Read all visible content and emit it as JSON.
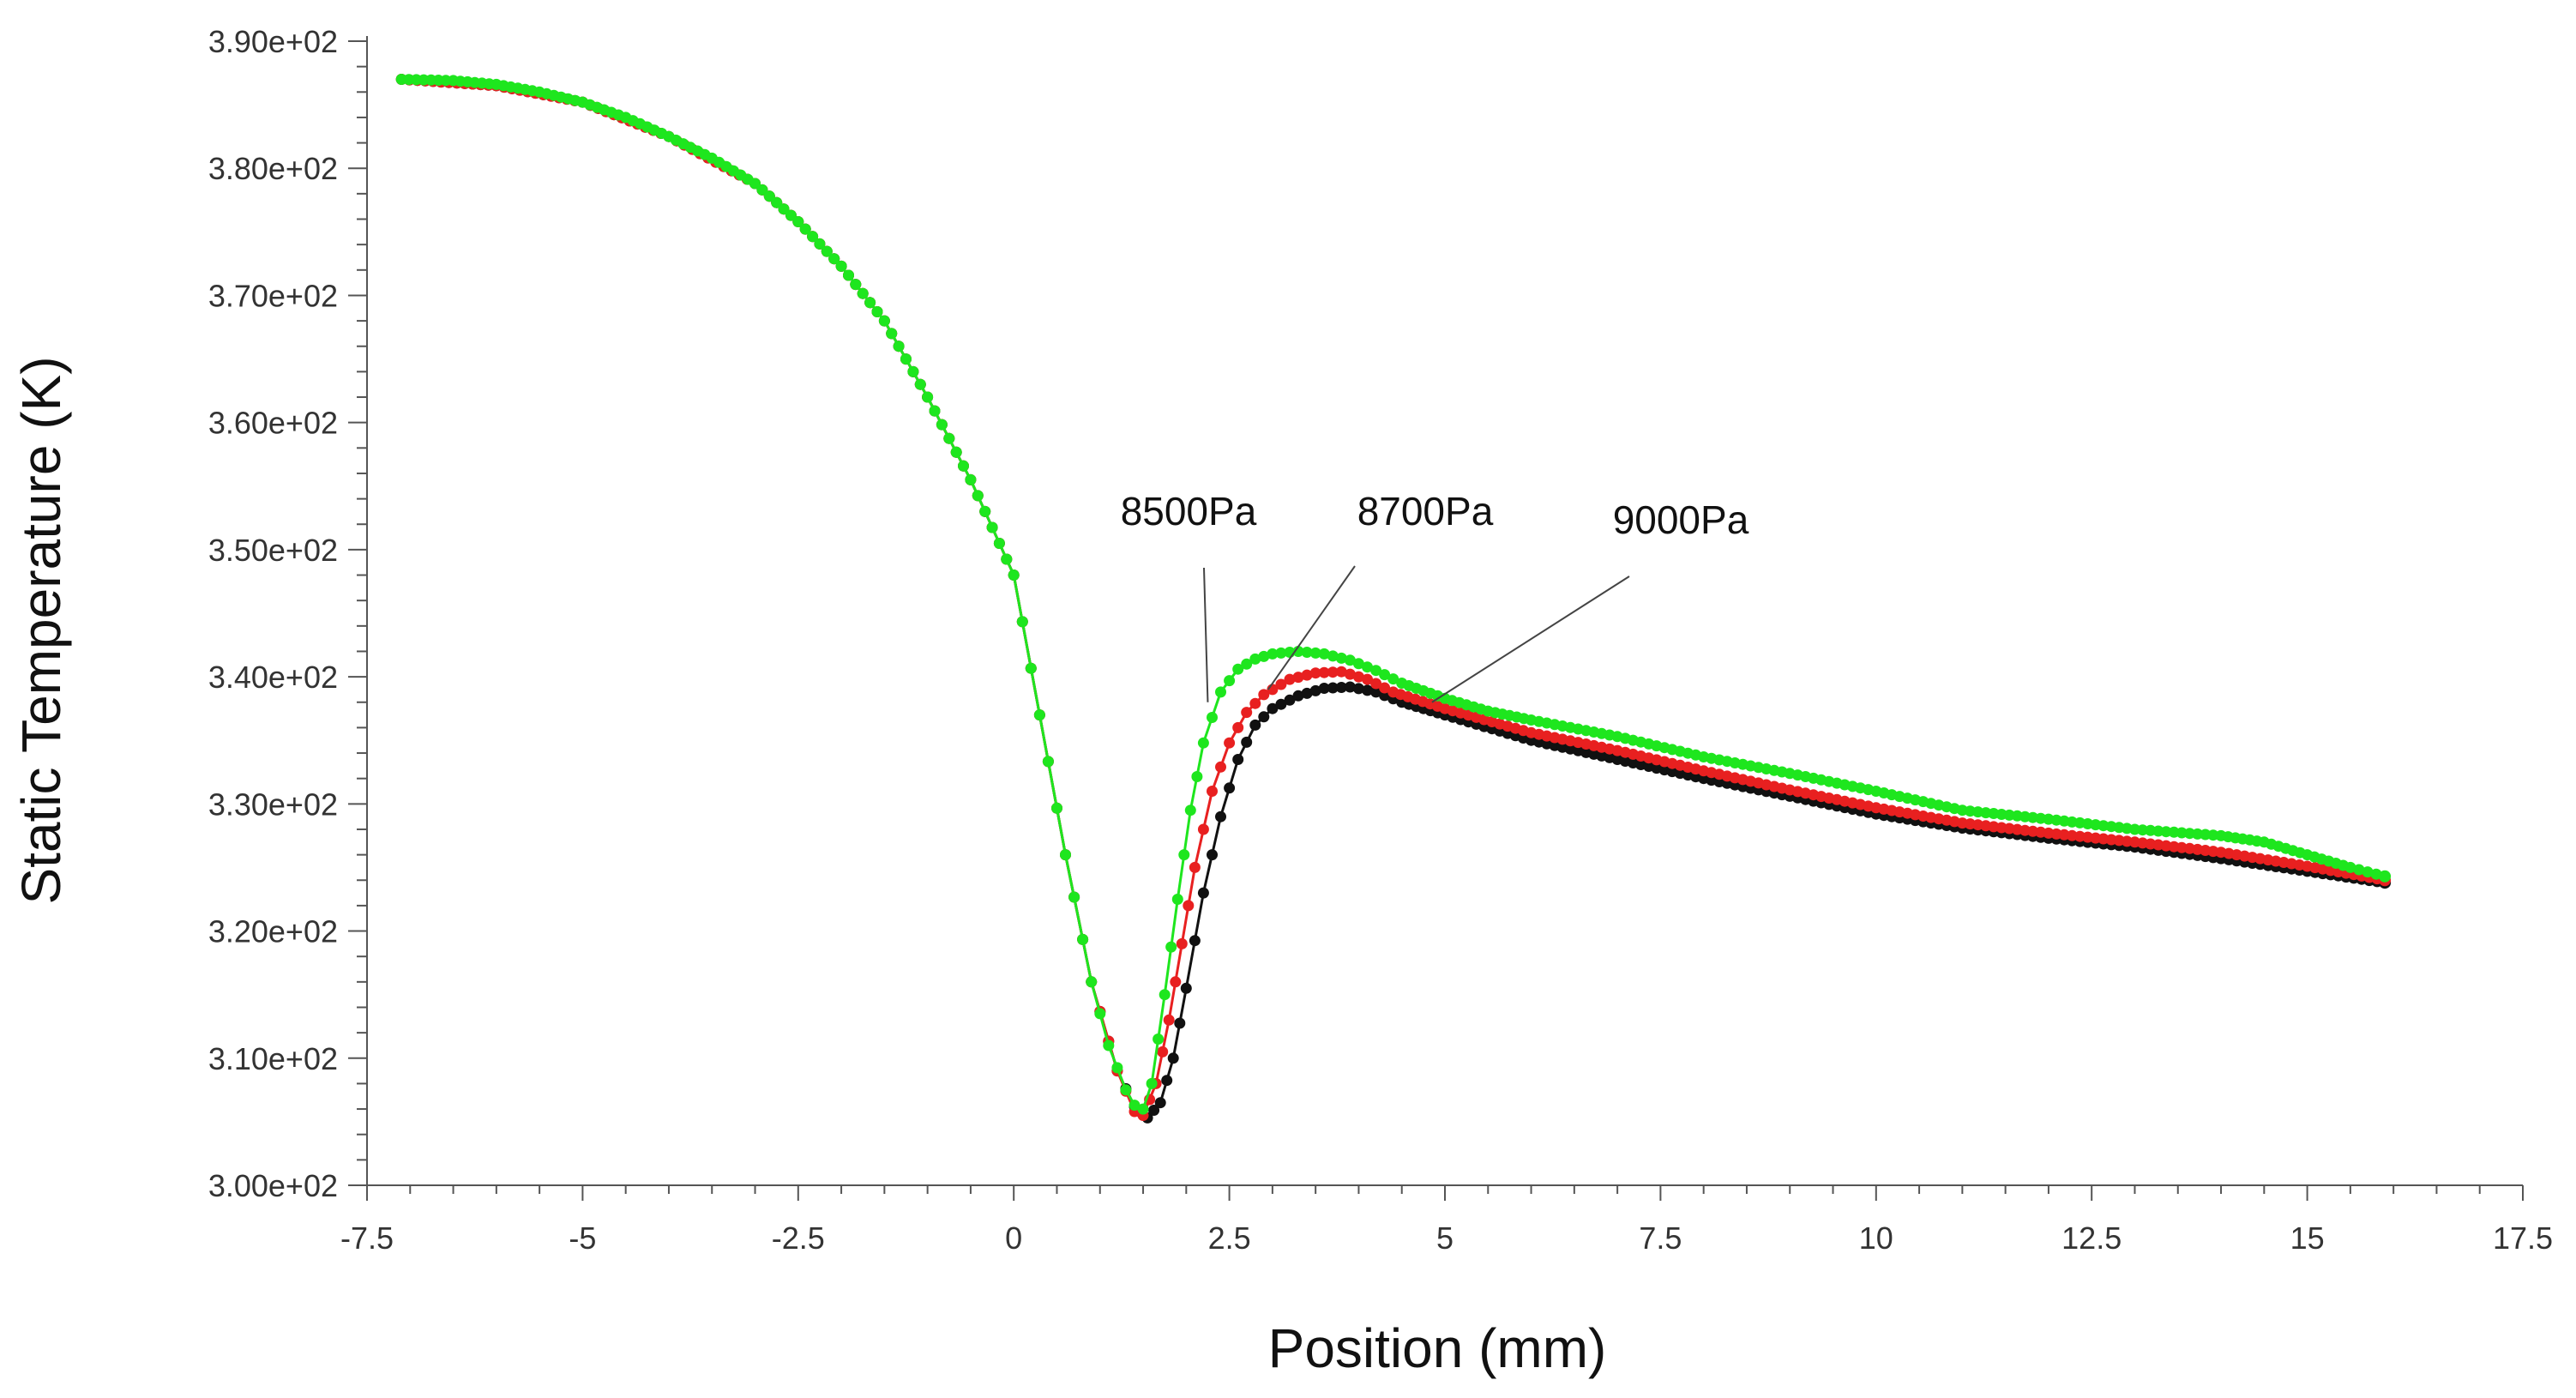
{
  "chart_data": {
    "type": "line",
    "title": "",
    "xlabel": "Position (mm)",
    "ylabel": "Static Temperature (K)",
    "xlim": [
      -7.5,
      17.5
    ],
    "ylim": [
      300,
      390
    ],
    "xticks": [
      -7.5,
      -5,
      -2.5,
      0,
      2.5,
      5,
      7.5,
      10,
      12.5,
      15,
      17.5
    ],
    "xtick_labels": [
      "-7.5",
      "-5",
      "-2.5",
      "0",
      "2.5",
      "5",
      "7.5",
      "10",
      "12.5",
      "15",
      "17.5"
    ],
    "yticks": [
      300,
      310,
      320,
      330,
      340,
      350,
      360,
      370,
      380,
      390
    ],
    "ytick_labels": [
      "3.00e+02",
      "3.10e+02",
      "3.20e+02",
      "3.30e+02",
      "3.40e+02",
      "3.50e+02",
      "3.60e+02",
      "3.70e+02",
      "3.80e+02",
      "3.90e+02"
    ],
    "grid": false,
    "series": [
      {
        "name": "9000Pa",
        "color": "#111111",
        "x": [
          -7.1,
          -6,
          -5,
          -4,
          -3,
          -2.5,
          -2,
          -1.5,
          -1,
          -0.5,
          0,
          0.3,
          0.6,
          0.9,
          1.2,
          1.4,
          1.55,
          1.7,
          1.85,
          2.0,
          2.2,
          2.4,
          2.6,
          2.8,
          3.0,
          3.3,
          3.6,
          3.9,
          4.2,
          4.5,
          5,
          6,
          7,
          8,
          9,
          10,
          11,
          12,
          13,
          14,
          15,
          15.9
        ],
        "y": [
          387,
          386.5,
          385.2,
          382.5,
          378.8,
          375.8,
          372.3,
          368,
          362,
          355.5,
          348,
          337,
          326,
          316,
          309,
          306.2,
          305.3,
          306.5,
          310,
          315.5,
          323,
          329,
          333.5,
          336.2,
          337.5,
          338.5,
          339.1,
          339.2,
          338.8,
          338,
          337,
          335,
          333.5,
          332,
          330.6,
          329.2,
          328.1,
          327.3,
          326.6,
          325.7,
          324.7,
          323.8
        ]
      },
      {
        "name": "8700Pa",
        "color": "#e82020",
        "x": [
          -7.1,
          -6,
          -5,
          -4,
          -3,
          -2.5,
          -2,
          -1.5,
          -1,
          -0.5,
          0,
          0.3,
          0.6,
          0.9,
          1.2,
          1.4,
          1.5,
          1.65,
          1.8,
          1.95,
          2.1,
          2.3,
          2.5,
          2.7,
          2.9,
          3.2,
          3.5,
          3.8,
          4.1,
          4.4,
          5,
          6,
          7,
          8,
          9,
          10,
          11,
          12,
          13,
          14,
          15,
          15.9
        ],
        "y": [
          387,
          386.5,
          385.2,
          382.5,
          378.8,
          375.8,
          372.3,
          368,
          362,
          355.5,
          348,
          337,
          326,
          316,
          309,
          305.8,
          305.5,
          308,
          313,
          319,
          325,
          331,
          334.8,
          337.2,
          338.6,
          339.8,
          340.3,
          340.4,
          339.8,
          338.8,
          337.5,
          335.6,
          334.2,
          332.6,
          331.1,
          329.7,
          328.5,
          327.7,
          327,
          326.2,
          325.1,
          324
        ]
      },
      {
        "name": "8500Pa",
        "color": "#1ee61e",
        "x": [
          -7.1,
          -6.5,
          -6,
          -5.5,
          -5,
          -4.5,
          -4,
          -3.5,
          -3,
          -2.5,
          -2,
          -1.5,
          -1,
          -0.5,
          0,
          0.3,
          0.6,
          0.9,
          1.1,
          1.3,
          1.4,
          1.5,
          1.6,
          1.75,
          1.9,
          2.05,
          2.2,
          2.4,
          2.6,
          2.8,
          3.0,
          3.3,
          3.6,
          3.9,
          4.2,
          4.5,
          5,
          5.5,
          6,
          7,
          8,
          9,
          10,
          11,
          12,
          13,
          14,
          14.5,
          15,
          15.5,
          15.9
        ],
        "y": [
          387,
          386.9,
          386.6,
          386,
          385.2,
          384,
          382.5,
          380.8,
          378.8,
          375.8,
          372.3,
          368,
          362,
          355.5,
          348,
          337,
          326,
          316,
          311,
          307.5,
          306.3,
          306,
          308,
          315,
          322.5,
          329.5,
          334.8,
          338.8,
          340.6,
          341.4,
          341.8,
          342,
          341.8,
          341.3,
          340.5,
          339.5,
          338.3,
          337.3,
          336.6,
          335.3,
          333.7,
          332.4,
          331,
          329.5,
          328.8,
          328,
          327.5,
          327,
          326,
          325,
          324.3
        ]
      }
    ],
    "annotations": [
      {
        "text": "8500Pa",
        "points_to_series": "8500Pa",
        "x": 2.25,
        "y": 338
      },
      {
        "text": "8700Pa",
        "points_to_series": "8700Pa",
        "x": 2.95,
        "y": 339
      },
      {
        "text": "9000Pa",
        "points_to_series": "9000Pa",
        "x": 4.85,
        "y": 338
      }
    ]
  }
}
